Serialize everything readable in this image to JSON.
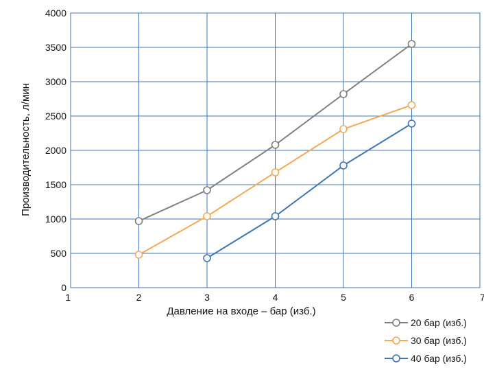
{
  "chart_data": {
    "type": "line",
    "xlabel": "Давление на входе – бар (изб.)",
    "ylabel": "Производительность, л/мин",
    "xlim": [
      1,
      7
    ],
    "ylim": [
      0,
      4000
    ],
    "x_ticks": [
      "1",
      "2",
      "3",
      "4",
      "5",
      "6",
      "7"
    ],
    "y_ticks": [
      "0",
      "500",
      "1000",
      "1500",
      "2000",
      "2500",
      "3000",
      "3500",
      "4000"
    ],
    "grid": true,
    "legend_position": "bottom-right",
    "series": [
      {
        "name": "20 бар (изб.)",
        "color": "#7f7f7f",
        "x": [
          2,
          3,
          4,
          5,
          6
        ],
        "y": [
          970,
          1420,
          2080,
          2820,
          3550
        ]
      },
      {
        "name": "30 бар (изб.)",
        "color": "#f5a85a",
        "x": [
          2,
          3,
          4,
          5,
          6
        ],
        "y": [
          480,
          1040,
          1680,
          2310,
          2660
        ]
      },
      {
        "name": "40 бар (изб.)",
        "color": "#3f74b5",
        "x": [
          3,
          4,
          5,
          6
        ],
        "y": [
          430,
          1040,
          1780,
          2390
        ]
      }
    ]
  }
}
